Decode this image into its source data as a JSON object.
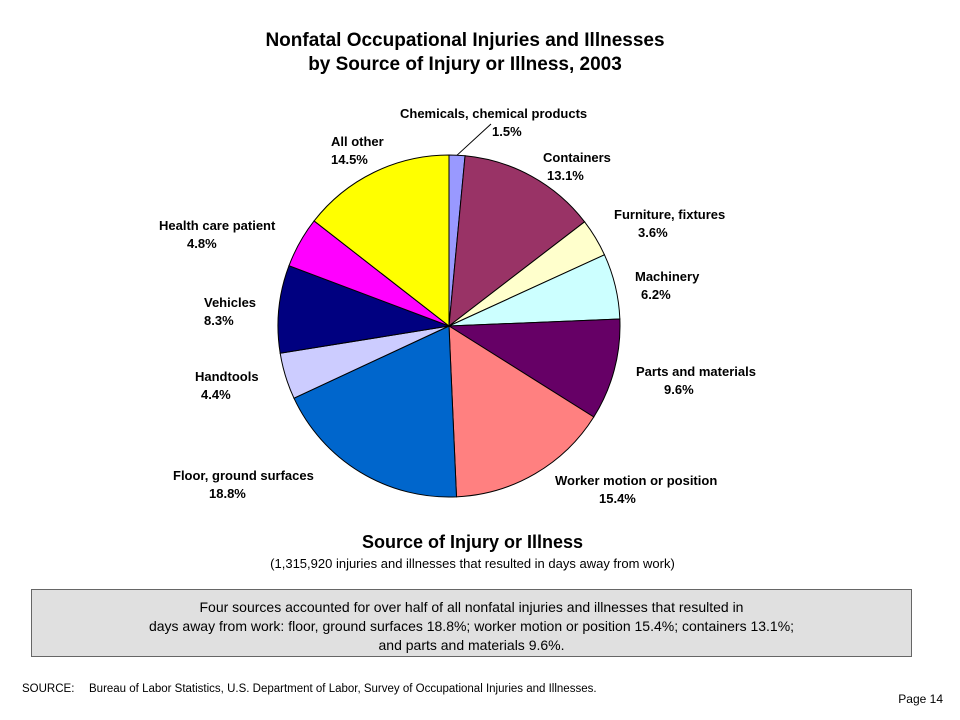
{
  "title_line1": "Nonfatal Occupational Injuries and Illnesses",
  "title_line2": "by Source of Injury or Illness, 2003",
  "chart_data": {
    "type": "pie",
    "title": "Source of Injury or Illness",
    "subtitle": "(1,315,920 injuries and illnesses that resulted in days away from work)",
    "slices": [
      {
        "label": "Chemicals, chemical products",
        "value": 1.5,
        "value_label": "1.5%",
        "color": "#9999ff"
      },
      {
        "label": "Containers",
        "value": 13.1,
        "value_label": "13.1%",
        "color": "#993366"
      },
      {
        "label": "Furniture, fixtures",
        "value": 3.6,
        "value_label": "3.6%",
        "color": "#ffffcc"
      },
      {
        "label": "Machinery",
        "value": 6.2,
        "value_label": "6.2%",
        "color": "#ccffff"
      },
      {
        "label": "Parts and materials",
        "value": 9.6,
        "value_label": "9.6%",
        "color": "#660066"
      },
      {
        "label": "Worker motion or position",
        "value": 15.4,
        "value_label": "15.4%",
        "color": "#ff8080"
      },
      {
        "label": "Floor, ground surfaces",
        "value": 18.8,
        "value_label": "18.8%",
        "color": "#0066cc"
      },
      {
        "label": "Handtools",
        "value": 4.4,
        "value_label": "4.4%",
        "color": "#ccccff"
      },
      {
        "label": "Vehicles",
        "value": 8.3,
        "value_label": "8.3%",
        "color": "#000080"
      },
      {
        "label": "Health care patient",
        "value": 4.8,
        "value_label": "4.8%",
        "color": "#ff00ff"
      },
      {
        "label": "All other",
        "value": 14.5,
        "value_label": "14.5%",
        "color": "#ffff00"
      }
    ]
  },
  "summary_lines": [
    "Four sources accounted for over half of all nonfatal injuries and illnesses that resulted in",
    "days away from work: floor, ground surfaces 18.8%; worker motion or position 15.4%; containers 13.1%;",
    "and parts and materials 9.6%."
  ],
  "source_label": "SOURCE:",
  "source_text": "Bureau of Labor Statistics, U.S. Department of Labor, Survey of Occupational Injuries and Illnesses.",
  "page_label": "Page 14"
}
